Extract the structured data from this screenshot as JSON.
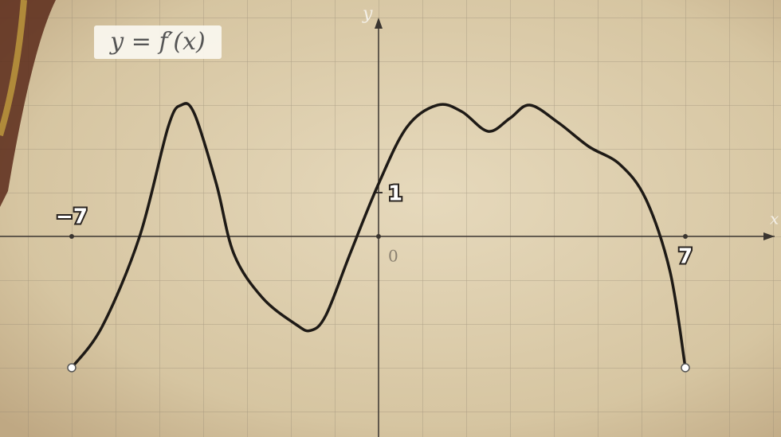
{
  "chart_data": {
    "type": "line",
    "title": "y = f′(x)",
    "x_label": "x",
    "y_label": "y",
    "x": [
      -7,
      -6.3,
      -5.45,
      -4.8,
      -4.5,
      -4.2,
      -3.7,
      -3.3,
      -2.65,
      -1.9,
      -1.55,
      -1.2,
      -0.65,
      0,
      0.65,
      1.35,
      1.9,
      2.5,
      3,
      3.45,
      4.1,
      4.8,
      5.5,
      6.1,
      6.65,
      7
    ],
    "series": [
      {
        "color": "#1e1a16",
        "values": [
          -3,
          -2.05,
          0,
          2.5,
          3,
          2.8,
          1.2,
          -0.4,
          -1.4,
          -2,
          -2.15,
          -1.8,
          -0.4,
          1.2,
          2.5,
          3,
          2.85,
          2.4,
          2.7,
          3,
          2.6,
          2.05,
          1.65,
          0.85,
          -0.8,
          -3
        ]
      }
    ],
    "xlim": [
      -8.636,
      9.182
    ],
    "ylim": [
      -4.582,
      5.4
    ],
    "xticks": [
      {
        "value": -7,
        "label": "−7"
      },
      0,
      7
    ],
    "yticks": [
      1
    ]
  }
}
